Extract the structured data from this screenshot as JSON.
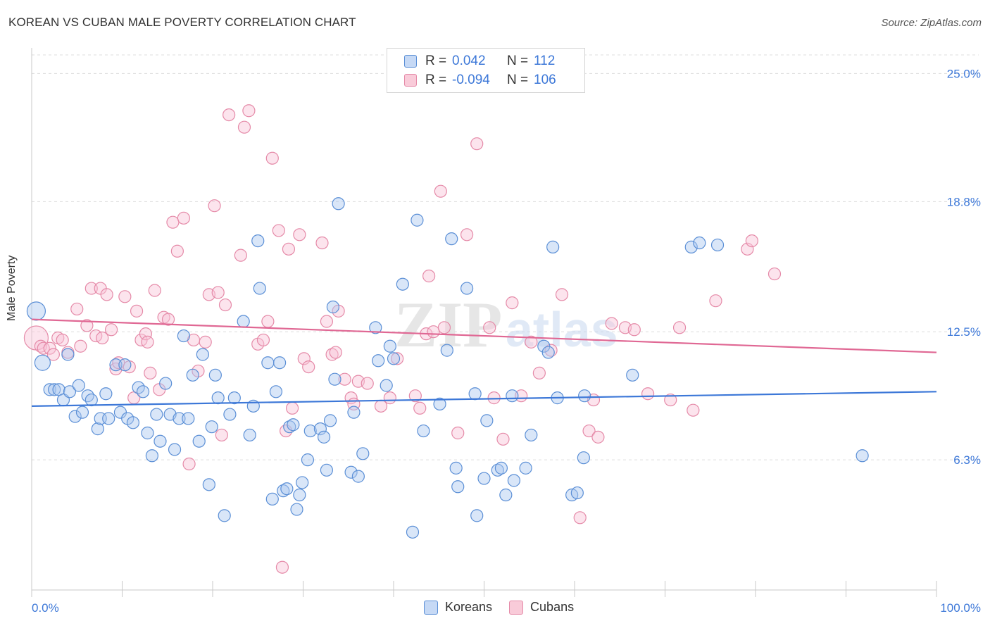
{
  "title": "KOREAN VS CUBAN MALE POVERTY CORRELATION CHART",
  "source": "Source: ZipAtlas.com",
  "watermark": "ZIPatlas",
  "legend": {
    "r_label": "R =",
    "n_label": "N =",
    "rows": [
      {
        "name": "Koreans",
        "r": "0.042",
        "n": "112",
        "color": "#5b8fd6",
        "fill": "#c6d9f5"
      },
      {
        "name": "Cubans",
        "r": "-0.094",
        "n": "106",
        "color": "#e58aa8",
        "fill": "#f9cbd9"
      }
    ]
  },
  "chart_data": {
    "type": "scatter",
    "ylabel": "Male Poverty",
    "xlabel": "",
    "xlim": [
      0,
      100
    ],
    "ylim": [
      0,
      25.9
    ],
    "x_tick_labels": [
      "0.0%",
      "100.0%"
    ],
    "y_ticks": [
      6.3,
      12.5,
      18.8,
      25.0
    ],
    "y_tick_labels": [
      "6.3%",
      "12.5%",
      "18.8%",
      "25.0%"
    ],
    "grid": true,
    "series": [
      {
        "name": "Koreans",
        "color": "#3d78d8",
        "trend": [
          [
            0,
            8.9
          ],
          [
            100,
            9.6
          ]
        ],
        "points": [
          [
            0.5,
            13.5
          ],
          [
            1.2,
            11.0
          ],
          [
            2,
            9.7
          ],
          [
            2.5,
            9.7
          ],
          [
            3,
            9.7
          ],
          [
            3.5,
            9.2
          ],
          [
            4,
            11.4
          ],
          [
            4.2,
            9.6
          ],
          [
            4.8,
            8.4
          ],
          [
            5.2,
            9.9
          ],
          [
            5.6,
            8.6
          ],
          [
            6.2,
            9.4
          ],
          [
            6.6,
            9.2
          ],
          [
            7.3,
            7.8
          ],
          [
            7.6,
            8.3
          ],
          [
            8.2,
            9.5
          ],
          [
            8.5,
            8.3
          ],
          [
            9.3,
            10.9
          ],
          [
            9.8,
            8.6
          ],
          [
            10.3,
            10.9
          ],
          [
            10.6,
            8.3
          ],
          [
            11.2,
            8.1
          ],
          [
            11.8,
            9.8
          ],
          [
            12.3,
            9.6
          ],
          [
            12.8,
            7.6
          ],
          [
            13.3,
            6.5
          ],
          [
            13.8,
            8.5
          ],
          [
            14.2,
            7.2
          ],
          [
            14.8,
            10.0
          ],
          [
            15.3,
            8.5
          ],
          [
            15.8,
            6.8
          ],
          [
            16.3,
            8.3
          ],
          [
            16.8,
            12.3
          ],
          [
            17.3,
            8.3
          ],
          [
            17.8,
            10.4
          ],
          [
            18.5,
            7.2
          ],
          [
            18.9,
            11.4
          ],
          [
            19.6,
            5.1
          ],
          [
            19.9,
            7.9
          ],
          [
            20.3,
            10.4
          ],
          [
            20.6,
            9.3
          ],
          [
            21.3,
            3.6
          ],
          [
            21.9,
            8.5
          ],
          [
            22.4,
            9.3
          ],
          [
            23.4,
            13.0
          ],
          [
            24.1,
            7.5
          ],
          [
            24.5,
            8.9
          ],
          [
            25.0,
            16.9
          ],
          [
            25.2,
            14.6
          ],
          [
            26.1,
            11.0
          ],
          [
            26.6,
            4.4
          ],
          [
            27.0,
            9.6
          ],
          [
            27.4,
            11.0
          ],
          [
            27.8,
            4.8
          ],
          [
            28.2,
            4.9
          ],
          [
            28.5,
            7.9
          ],
          [
            28.9,
            8.0
          ],
          [
            29.3,
            3.9
          ],
          [
            29.6,
            4.6
          ],
          [
            29.9,
            5.2
          ],
          [
            30.5,
            6.3
          ],
          [
            30.8,
            7.7
          ],
          [
            31.9,
            7.8
          ],
          [
            32.6,
            5.8
          ],
          [
            32.3,
            7.4
          ],
          [
            33.0,
            8.2
          ],
          [
            33.3,
            13.7
          ],
          [
            33.5,
            10.2
          ],
          [
            33.9,
            18.7
          ],
          [
            35.3,
            5.7
          ],
          [
            35.6,
            8.6
          ],
          [
            36.1,
            5.5
          ],
          [
            36.6,
            6.6
          ],
          [
            38.0,
            12.7
          ],
          [
            38.3,
            11.1
          ],
          [
            39.2,
            9.9
          ],
          [
            39.6,
            11.8
          ],
          [
            40.0,
            11.2
          ],
          [
            41.0,
            14.8
          ],
          [
            42.1,
            2.8
          ],
          [
            42.6,
            17.9
          ],
          [
            43.3,
            7.7
          ],
          [
            45.1,
            9.0
          ],
          [
            45.9,
            11.6
          ],
          [
            46.4,
            17.0
          ],
          [
            46.9,
            5.9
          ],
          [
            47.1,
            5.0
          ],
          [
            48.1,
            14.6
          ],
          [
            49.2,
            3.6
          ],
          [
            49.0,
            9.5
          ],
          [
            50.0,
            5.4
          ],
          [
            50.3,
            8.2
          ],
          [
            51.5,
            5.8
          ],
          [
            51.9,
            5.9
          ],
          [
            52.4,
            4.6
          ],
          [
            53.1,
            9.4
          ],
          [
            53.3,
            5.3
          ],
          [
            54.6,
            5.9
          ],
          [
            55.2,
            7.5
          ],
          [
            56.6,
            11.8
          ],
          [
            57.1,
            11.5
          ],
          [
            57.6,
            16.6
          ],
          [
            58.1,
            9.3
          ],
          [
            59.7,
            4.6
          ],
          [
            60.3,
            4.7
          ],
          [
            61.0,
            6.4
          ],
          [
            61.1,
            9.4
          ],
          [
            66.4,
            10.4
          ],
          [
            72.9,
            16.6
          ],
          [
            73.8,
            16.8
          ],
          [
            75.8,
            16.7
          ],
          [
            91.8,
            6.5
          ]
        ]
      },
      {
        "name": "Cubans",
        "color": "#e06894",
        "trend": [
          [
            0,
            13.1
          ],
          [
            100,
            11.5
          ]
        ],
        "points": [
          [
            0.5,
            12.2
          ],
          [
            1.0,
            11.8
          ],
          [
            1.3,
            11.7
          ],
          [
            2.0,
            11.7
          ],
          [
            2.4,
            11.4
          ],
          [
            2.9,
            12.2
          ],
          [
            3.4,
            12.1
          ],
          [
            4.0,
            11.5
          ],
          [
            5.0,
            13.6
          ],
          [
            5.4,
            11.8
          ],
          [
            6.1,
            12.8
          ],
          [
            6.6,
            14.6
          ],
          [
            7.1,
            12.3
          ],
          [
            7.6,
            14.6
          ],
          [
            7.8,
            12.2
          ],
          [
            8.3,
            14.3
          ],
          [
            8.8,
            12.6
          ],
          [
            9.3,
            10.7
          ],
          [
            9.6,
            11.0
          ],
          [
            10.3,
            14.2
          ],
          [
            10.8,
            10.8
          ],
          [
            11.3,
            9.3
          ],
          [
            11.6,
            13.5
          ],
          [
            12.1,
            12.1
          ],
          [
            12.6,
            12.4
          ],
          [
            12.8,
            12.0
          ],
          [
            13.1,
            10.5
          ],
          [
            13.6,
            14.5
          ],
          [
            14.1,
            9.7
          ],
          [
            14.6,
            13.2
          ],
          [
            15.1,
            13.1
          ],
          [
            15.6,
            17.8
          ],
          [
            16.1,
            16.4
          ],
          [
            16.8,
            18.0
          ],
          [
            17.4,
            6.1
          ],
          [
            17.9,
            12.1
          ],
          [
            18.4,
            10.6
          ],
          [
            19.2,
            12.0
          ],
          [
            19.6,
            14.3
          ],
          [
            20.2,
            18.6
          ],
          [
            20.6,
            14.4
          ],
          [
            21.0,
            7.5
          ],
          [
            21.4,
            13.8
          ],
          [
            21.8,
            23.0
          ],
          [
            23.1,
            16.2
          ],
          [
            23.5,
            22.4
          ],
          [
            24.0,
            23.2
          ],
          [
            25.0,
            11.9
          ],
          [
            25.6,
            12.1
          ],
          [
            26.1,
            13.0
          ],
          [
            26.6,
            20.9
          ],
          [
            27.3,
            17.4
          ],
          [
            27.7,
            1.1
          ],
          [
            28.1,
            7.7
          ],
          [
            28.4,
            16.5
          ],
          [
            28.8,
            8.8
          ],
          [
            29.6,
            17.2
          ],
          [
            30.1,
            11.2
          ],
          [
            30.6,
            10.8
          ],
          [
            32.1,
            16.8
          ],
          [
            32.6,
            13.0
          ],
          [
            33.2,
            11.4
          ],
          [
            33.6,
            11.5
          ],
          [
            33.9,
            13.5
          ],
          [
            34.6,
            10.2
          ],
          [
            35.3,
            9.3
          ],
          [
            35.6,
            9.0
          ],
          [
            36.1,
            10.1
          ],
          [
            37.1,
            10.0
          ],
          [
            38.6,
            8.9
          ],
          [
            39.6,
            9.3
          ],
          [
            40.4,
            11.2
          ],
          [
            42.4,
            9.4
          ],
          [
            42.9,
            8.8
          ],
          [
            43.6,
            12.4
          ],
          [
            43.9,
            15.2
          ],
          [
            44.4,
            12.5
          ],
          [
            45.2,
            19.3
          ],
          [
            45.6,
            12.7
          ],
          [
            47.1,
            7.6
          ],
          [
            48.1,
            17.2
          ],
          [
            49.2,
            21.6
          ],
          [
            50.6,
            12.7
          ],
          [
            51.1,
            9.3
          ],
          [
            52.1,
            7.3
          ],
          [
            53.1,
            13.9
          ],
          [
            54.1,
            9.4
          ],
          [
            55.2,
            12.0
          ],
          [
            56.1,
            10.5
          ],
          [
            57.4,
            11.6
          ],
          [
            58.6,
            14.3
          ],
          [
            60.6,
            3.5
          ],
          [
            61.6,
            7.7
          ],
          [
            62.1,
            9.2
          ],
          [
            62.6,
            7.4
          ],
          [
            64.1,
            12.9
          ],
          [
            65.6,
            12.7
          ],
          [
            66.6,
            12.6
          ],
          [
            68.1,
            9.5
          ],
          [
            70.6,
            9.2
          ],
          [
            71.6,
            12.7
          ],
          [
            73.1,
            8.7
          ],
          [
            75.6,
            14.0
          ],
          [
            79.1,
            16.5
          ],
          [
            79.6,
            16.9
          ],
          [
            82.1,
            15.3
          ]
        ]
      }
    ]
  }
}
